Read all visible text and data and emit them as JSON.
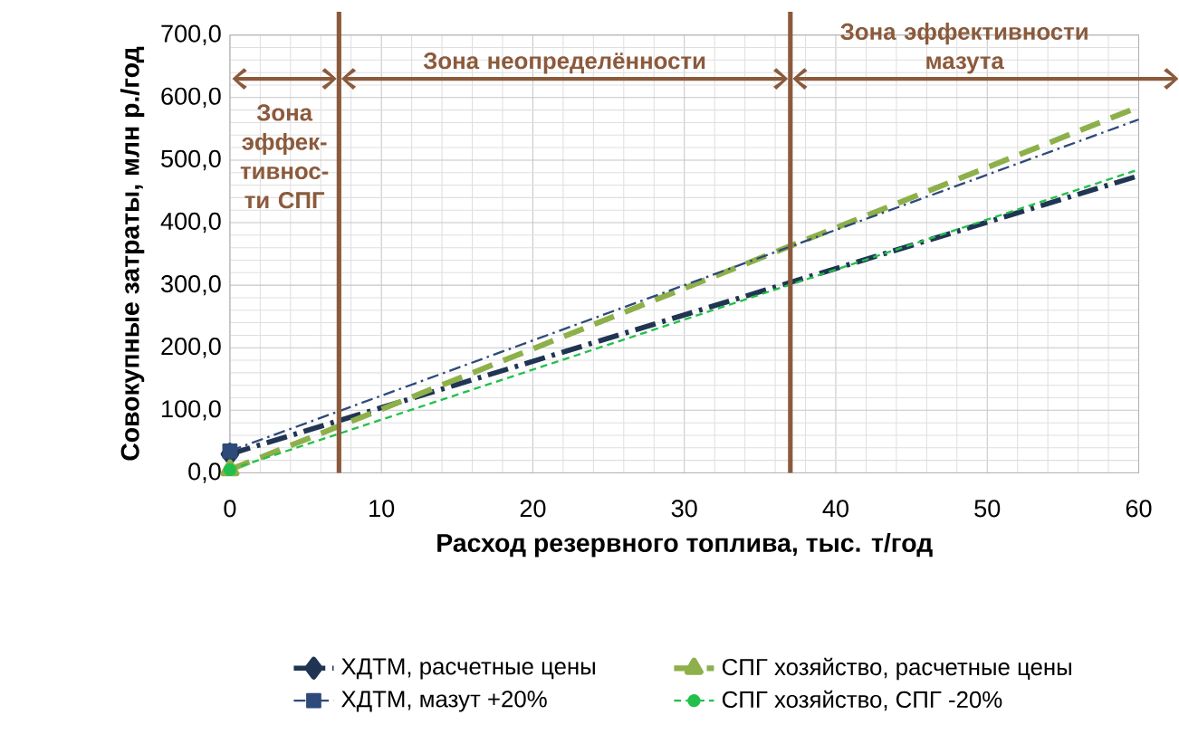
{
  "chart_data": {
    "type": "line",
    "xlabel": "Расход резервного топлива, тыс. т/год",
    "ylabel": "Совокупные затраты, млн р./год",
    "x": [
      0,
      60
    ],
    "series": [
      {
        "name": "ХДТМ, расчетные цены",
        "color": "#1f3552",
        "values": [
          30,
          475
        ],
        "marker": "diamond",
        "line_style": "dashed"
      },
      {
        "name": "СПГ хозяйство, расчетные цены",
        "color": "#8db04a",
        "values": [
          5,
          585
        ],
        "marker": "triangle",
        "line_style": "dashed"
      },
      {
        "name": "ХДТМ, мазут +20%",
        "color": "#2e4a7a",
        "values": [
          35,
          565
        ],
        "marker": "square",
        "line_style": "dashed"
      },
      {
        "name": "СПГ хозяйство, СПГ -20%",
        "color": "#22c04a",
        "values": [
          5,
          485
        ],
        "marker": "circle",
        "line_style": "dashed"
      }
    ],
    "xlim": [
      0,
      60
    ],
    "xticks": [
      0,
      10,
      20,
      30,
      40,
      50,
      60
    ],
    "ylim": [
      0,
      700
    ],
    "yticks": [
      {
        "value": 0,
        "label": "0,0"
      },
      {
        "value": 100,
        "label": "100,0"
      },
      {
        "value": 200,
        "label": "200,0"
      },
      {
        "value": 300,
        "label": "300,0"
      },
      {
        "value": 400,
        "label": "400,0"
      },
      {
        "value": 500,
        "label": "500,0"
      },
      {
        "value": 600,
        "label": "600,0"
      },
      {
        "value": 700,
        "label": "700,0"
      }
    ],
    "ref_lines": [
      {
        "axis": "x",
        "value": 7.2,
        "color": "#8b5a3c"
      },
      {
        "axis": "x",
        "value": 37,
        "color": "#8b5a3c"
      }
    ],
    "annotations": [
      "Зона эффек-тивнос-ти СПГ",
      "Зона неопределённости",
      "Зона эффективности мазута"
    ],
    "grid": true,
    "legend": "bottom"
  }
}
